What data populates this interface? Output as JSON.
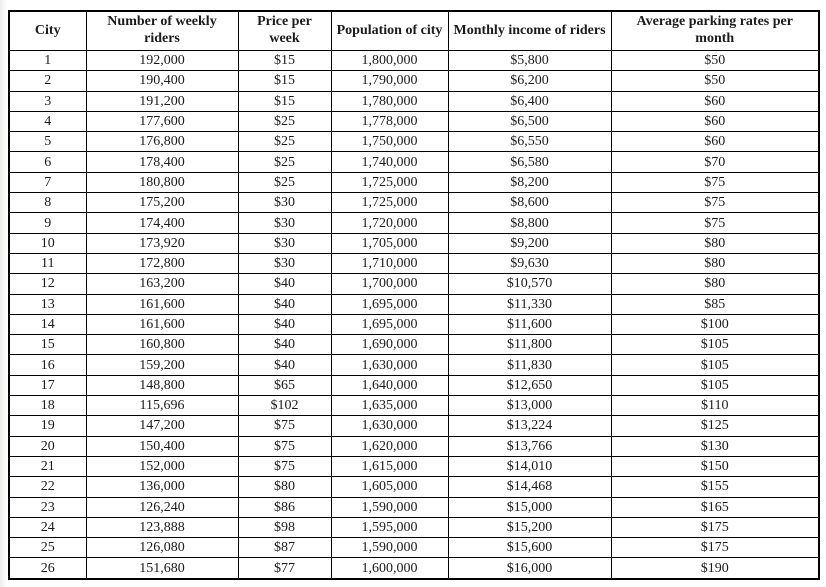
{
  "colors": {
    "border": "#000000",
    "text": "#1c1c1c",
    "background": "#ffffff"
  },
  "table": {
    "columns": [
      "City",
      "Number of weekly riders",
      "Price per week",
      "Population of city",
      "Monthly income of riders",
      "Average parking rates per month"
    ],
    "rows": [
      [
        "1",
        "192,000",
        "$15",
        "1,800,000",
        "$5,800",
        "$50"
      ],
      [
        "2",
        "190,400",
        "$15",
        "1,790,000",
        "$6,200",
        "$50"
      ],
      [
        "3",
        "191,200",
        "$15",
        "1,780,000",
        "$6,400",
        "$60"
      ],
      [
        "4",
        "177,600",
        "$25",
        "1,778,000",
        "$6,500",
        "$60"
      ],
      [
        "5",
        "176,800",
        "$25",
        "1,750,000",
        "$6,550",
        "$60"
      ],
      [
        "6",
        "178,400",
        "$25",
        "1,740,000",
        "$6,580",
        "$70"
      ],
      [
        "7",
        "180,800",
        "$25",
        "1,725,000",
        "$8,200",
        "$75"
      ],
      [
        "8",
        "175,200",
        "$30",
        "1,725,000",
        "$8,600",
        "$75"
      ],
      [
        "9",
        "174,400",
        "$30",
        "1,720,000",
        "$8,800",
        "$75"
      ],
      [
        "10",
        "173,920",
        "$30",
        "1,705,000",
        "$9,200",
        "$80"
      ],
      [
        "11",
        "172,800",
        "$30",
        "1,710,000",
        "$9,630",
        "$80"
      ],
      [
        "12",
        "163,200",
        "$40",
        "1,700,000",
        "$10,570",
        "$80"
      ],
      [
        "13",
        "161,600",
        "$40",
        "1,695,000",
        "$11,330",
        "$85"
      ],
      [
        "14",
        "161,600",
        "$40",
        "1,695,000",
        "$11,600",
        "$100"
      ],
      [
        "15",
        "160,800",
        "$40",
        "1,690,000",
        "$11,800",
        "$105"
      ],
      [
        "16",
        "159,200",
        "$40",
        "1,630,000",
        "$11,830",
        "$105"
      ],
      [
        "17",
        "148,800",
        "$65",
        "1,640,000",
        "$12,650",
        "$105"
      ],
      [
        "18",
        "115,696",
        "$102",
        "1,635,000",
        "$13,000",
        "$110"
      ],
      [
        "19",
        "147,200",
        "$75",
        "1,630,000",
        "$13,224",
        "$125"
      ],
      [
        "20",
        "150,400",
        "$75",
        "1,620,000",
        "$13,766",
        "$130"
      ],
      [
        "21",
        "152,000",
        "$75",
        "1,615,000",
        "$14,010",
        "$150"
      ],
      [
        "22",
        "136,000",
        "$80",
        "1,605,000",
        "$14,468",
        "$155"
      ],
      [
        "23",
        "126,240",
        "$86",
        "1,590,000",
        "$15,000",
        "$165"
      ],
      [
        "24",
        "123,888",
        "$98",
        "1,595,000",
        "$15,200",
        "$175"
      ],
      [
        "25",
        "126,080",
        "$87",
        "1,590,000",
        "$15,600",
        "$175"
      ],
      [
        "26",
        "151,680",
        "$77",
        "1,600,000",
        "$16,000",
        "$190"
      ]
    ]
  }
}
